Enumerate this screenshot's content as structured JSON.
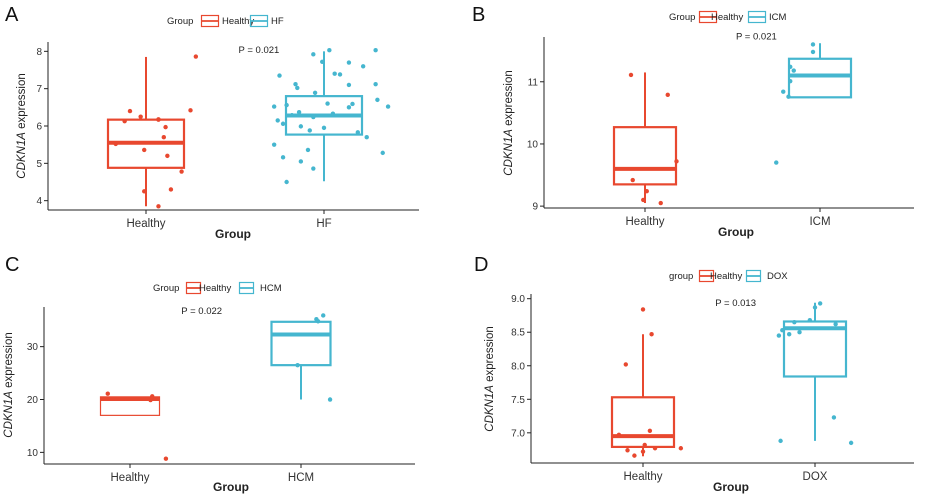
{
  "colors": {
    "healthy": "#e8482f",
    "disease": "#45b6cf",
    "axis": "#222222",
    "tick_text": "#333333"
  },
  "chart_data": [
    {
      "type": "box",
      "panel_label": "A",
      "legend": {
        "title": "Group",
        "placement": "top",
        "entries": [
          "Healthy",
          "HF"
        ]
      },
      "categories": [
        "Healthy",
        "HF"
      ],
      "xlabel": "Group",
      "ylabel_gene": "CDKN1A",
      "ylabel_suffix": " expression",
      "ylim": [
        3.75,
        8.25
      ],
      "yticks": [
        4,
        5,
        6,
        7,
        8
      ],
      "ytick_labels": [
        "4",
        "5",
        "6",
        "7",
        "8"
      ],
      "p_value": "P = 0.021",
      "p_value_at": [
        1.52,
        7.95
      ],
      "boxes": [
        {
          "name": "Healthy",
          "min": 3.85,
          "q1": 4.88,
          "median": 5.55,
          "q3": 6.17,
          "max": 7.85,
          "open": false
        },
        {
          "name": "HF",
          "min": 4.52,
          "q1": 5.77,
          "median": 6.28,
          "q3": 6.8,
          "max": 8.0,
          "open": false
        }
      ],
      "points": [
        [
          [
            1.28,
            7.86
          ],
          [
            0.83,
            5.52
          ],
          [
            1.2,
            4.78
          ],
          [
            1.07,
            6.17
          ],
          [
            1.1,
            5.7
          ],
          [
            1.12,
            5.2
          ],
          [
            0.99,
            5.36
          ],
          [
            1.11,
            5.97
          ],
          [
            0.97,
            6.25
          ],
          [
            1.07,
            6.18
          ],
          [
            0.91,
            6.4
          ],
          [
            0.88,
            6.13
          ],
          [
            1.14,
            4.3
          ],
          [
            0.99,
            4.25
          ],
          [
            1.07,
            3.85
          ],
          [
            1.25,
            6.42
          ]
        ],
        [
          [
            2.03,
            8.03
          ],
          [
            2.29,
            8.03
          ],
          [
            1.94,
            7.92
          ],
          [
            2.14,
            7.7
          ],
          [
            1.99,
            7.72
          ],
          [
            2.22,
            7.6
          ],
          [
            2.06,
            7.4
          ],
          [
            2.09,
            7.38
          ],
          [
            1.75,
            7.35
          ],
          [
            1.84,
            7.12
          ],
          [
            2.29,
            7.12
          ],
          [
            2.14,
            7.1
          ],
          [
            1.85,
            7.02
          ],
          [
            1.95,
            6.89
          ],
          [
            2.3,
            6.7
          ],
          [
            2.16,
            6.59
          ],
          [
            2.02,
            6.6
          ],
          [
            1.72,
            6.52
          ],
          [
            1.79,
            6.56
          ],
          [
            2.14,
            6.5
          ],
          [
            2.36,
            6.52
          ],
          [
            1.86,
            6.37
          ],
          [
            2.05,
            6.33
          ],
          [
            1.82,
            6.29
          ],
          [
            1.94,
            6.24
          ],
          [
            1.74,
            6.15
          ],
          [
            1.77,
            6.06
          ],
          [
            1.87,
            5.99
          ],
          [
            2.0,
            5.95
          ],
          [
            1.92,
            5.88
          ],
          [
            2.19,
            5.83
          ],
          [
            2.24,
            5.7
          ],
          [
            1.72,
            5.5
          ],
          [
            1.91,
            5.36
          ],
          [
            2.33,
            5.28
          ],
          [
            1.77,
            5.16
          ],
          [
            1.87,
            5.05
          ],
          [
            1.94,
            4.86
          ],
          [
            1.79,
            4.5
          ]
        ]
      ]
    },
    {
      "type": "box",
      "panel_label": "B",
      "legend": {
        "title": "Group",
        "placement": "top",
        "entries": [
          "Healthy",
          "ICM"
        ]
      },
      "categories": [
        "Healthy",
        "ICM"
      ],
      "xlabel": "Group",
      "ylabel_gene": "CDKN1A",
      "ylabel_suffix": " expression",
      "ylim": [
        8.97,
        11.72
      ],
      "yticks": [
        9,
        10,
        11
      ],
      "ytick_labels": [
        "9",
        "10",
        "11"
      ],
      "p_value": "P = 0.021",
      "p_value_at": [
        1.52,
        11.68
      ],
      "boxes": [
        {
          "name": "Healthy",
          "min": 9.05,
          "q1": 9.35,
          "median": 9.6,
          "q3": 10.27,
          "max": 11.15,
          "open": false
        },
        {
          "name": "ICM",
          "min": 10.75,
          "q1": 10.75,
          "median": 11.1,
          "q3": 11.37,
          "max": 11.62,
          "open": false
        }
      ],
      "points": [
        [
          [
            1.09,
            9.05
          ],
          [
            0.99,
            9.1
          ],
          [
            0.93,
            9.42
          ],
          [
            1.18,
            9.72
          ],
          [
            1.01,
            9.24
          ],
          [
            1.13,
            10.79
          ],
          [
            0.92,
            11.11
          ]
        ],
        [
          [
            1.75,
            9.7
          ],
          [
            1.82,
            10.76
          ],
          [
            1.79,
            10.84
          ],
          [
            1.83,
            11.01
          ],
          [
            1.85,
            11.18
          ],
          [
            1.83,
            11.24
          ],
          [
            1.96,
            11.48
          ],
          [
            1.96,
            11.6
          ]
        ]
      ]
    },
    {
      "type": "box",
      "panel_label": "C",
      "legend": {
        "title": "Group",
        "placement": "top",
        "entries": [
          "Healthy",
          "HCM"
        ]
      },
      "categories": [
        "Healthy",
        "HCM"
      ],
      "xlabel": "Group",
      "ylabel_gene": "CDKN1A",
      "ylabel_suffix": " expression",
      "ylim": [
        7.8,
        37.5
      ],
      "yticks": [
        10,
        20,
        30
      ],
      "ytick_labels": [
        "10",
        "20",
        "30"
      ],
      "p_value": "P = 0.022",
      "p_value_at": [
        1.3,
        36.2
      ],
      "boxes": [
        {
          "name": "Healthy",
          "min": 17.0,
          "q1": 17.0,
          "median": 20.1,
          "q3": 20.5,
          "max": 20.5,
          "open": true
        },
        {
          "name": "HCM",
          "min": 20.0,
          "q1": 26.5,
          "median": 32.3,
          "q3": 34.7,
          "max": 34.7,
          "open": false
        }
      ],
      "points": [
        [
          [
            1.21,
            8.8
          ],
          [
            1.12,
            19.9
          ],
          [
            1.13,
            20.6
          ],
          [
            0.87,
            21.1
          ]
        ],
        [
          [
            2.17,
            20.0
          ],
          [
            1.98,
            26.5
          ],
          [
            2.1,
            34.8
          ],
          [
            2.09,
            35.2
          ],
          [
            2.13,
            35.9
          ]
        ]
      ]
    },
    {
      "type": "box",
      "panel_label": "D",
      "legend": {
        "title": "group",
        "placement": "top",
        "entries": [
          "Healthy",
          "DOX"
        ]
      },
      "categories": [
        "Healthy",
        "DOX"
      ],
      "xlabel": "Group",
      "ylabel_gene": "CDKN1A",
      "ylabel_suffix": " expression",
      "ylim": [
        6.55,
        9.07
      ],
      "yticks": [
        7.0,
        7.5,
        8.0,
        8.5,
        9.0
      ],
      "ytick_labels": [
        "7.0",
        "7.5",
        "8.0",
        "8.5",
        "9.0"
      ],
      "p_value": "P = 0.013",
      "p_value_at": [
        1.42,
        8.89
      ],
      "boxes": [
        {
          "name": "Healthy",
          "min": 6.65,
          "q1": 6.79,
          "median": 6.95,
          "q3": 7.53,
          "max": 8.47,
          "open": false
        },
        {
          "name": "DOX",
          "min": 6.88,
          "q1": 7.84,
          "median": 8.56,
          "q3": 8.66,
          "max": 8.94,
          "open": false
        }
      ],
      "points": [
        [
          [
            1.0,
            8.84
          ],
          [
            1.05,
            8.47
          ],
          [
            0.9,
            8.02
          ],
          [
            1.04,
            7.03
          ],
          [
            0.86,
            6.97
          ],
          [
            1.0,
            6.72
          ],
          [
            1.01,
            6.82
          ],
          [
            1.07,
            6.77
          ],
          [
            1.22,
            6.77
          ],
          [
            0.91,
            6.74
          ],
          [
            0.95,
            6.66
          ]
        ],
        [
          [
            2.03,
            8.93
          ],
          [
            2.0,
            8.87
          ],
          [
            1.97,
            8.68
          ],
          [
            1.88,
            8.65
          ],
          [
            2.12,
            8.62
          ],
          [
            1.81,
            8.53
          ],
          [
            1.91,
            8.5
          ],
          [
            1.85,
            8.47
          ],
          [
            1.79,
            8.45
          ],
          [
            2.11,
            7.23
          ],
          [
            1.8,
            6.88
          ],
          [
            2.21,
            6.85
          ]
        ]
      ]
    }
  ]
}
